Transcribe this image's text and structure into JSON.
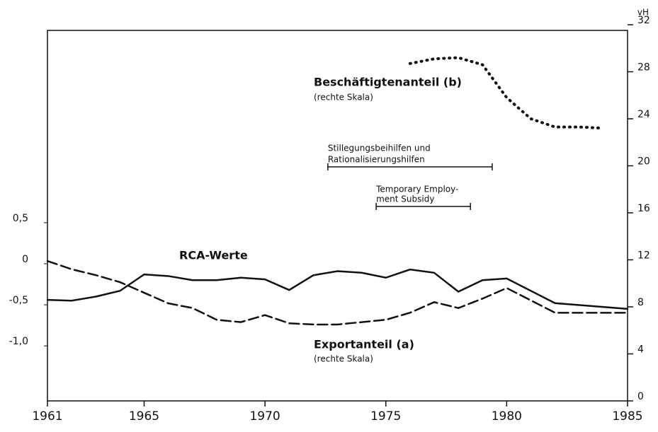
{
  "chart_data": {
    "type": "line",
    "y2label": "vH",
    "xlim": [
      1961,
      1985
    ],
    "xticks": [
      1961,
      1965,
      1970,
      1975,
      1980,
      1985
    ],
    "ylim": [
      -1.67,
      2.91
    ],
    "yticks": [
      {
        "value": 0.5,
        "label": "0,5"
      },
      0,
      {
        "value": -0.5,
        "label": "-0,5"
      },
      {
        "value": -1.0,
        "label": "-1,0"
      }
    ],
    "y2lim": [
      0,
      32
    ],
    "y2ticks": [
      0,
      4,
      8,
      12,
      16,
      20,
      24,
      28,
      32
    ],
    "series": [
      {
        "name": "RCA-Werte",
        "color": "#111",
        "style": "solid",
        "axis": "y",
        "x": [
          1961,
          1962,
          1963,
          1964,
          1965,
          1966,
          1967,
          1968,
          1969,
          1970,
          1971,
          1972,
          1973,
          1974,
          1975,
          1976,
          1977,
          1978,
          1979,
          1980,
          1982,
          1985
        ],
        "values": [
          -0.44,
          -0.45,
          -0.4,
          -0.33,
          -0.13,
          -0.15,
          -0.2,
          -0.2,
          -0.17,
          -0.19,
          -0.32,
          -0.14,
          -0.09,
          -0.11,
          -0.17,
          -0.07,
          -0.11,
          -0.34,
          -0.2,
          -0.18,
          -0.48,
          -0.55
        ]
      },
      {
        "name": "Exportanteil (a)",
        "note": "(rechte Skala)",
        "color": "#111",
        "style": "dashed",
        "axis": "y2",
        "x": [
          1961,
          1962,
          1963,
          1964,
          1965,
          1966,
          1967,
          1968,
          1969,
          1970,
          1971,
          1972,
          1973,
          1974,
          1975,
          1976,
          1977,
          1978,
          1979,
          1980,
          1982,
          1985
        ],
        "values": [
          11.9,
          11.2,
          10.7,
          10.1,
          9.2,
          8.3,
          7.9,
          6.9,
          6.7,
          7.3,
          6.6,
          6.5,
          6.5,
          6.7,
          6.9,
          7.5,
          8.4,
          7.9,
          8.7,
          9.6,
          7.5,
          7.5
        ]
      },
      {
        "name": "Beschäftigtenanteil (b)",
        "note": "(rechte Skala)",
        "color": "#111",
        "style": "dotted",
        "axis": "y2",
        "x": [
          1976,
          1977,
          1978,
          1979,
          1980,
          1981,
          1982,
          1983,
          1984
        ],
        "values": [
          28.7,
          29.1,
          29.2,
          28.6,
          25.8,
          24.0,
          23.3,
          23.3,
          23.2
        ]
      }
    ],
    "annotations": [
      {
        "text": "Stillegungsbeihilfen und",
        "text2": "Rationalisierungshilfen",
        "span": [
          1972.6,
          1979.4
        ]
      },
      {
        "text": "Temporary Employ-",
        "text2": "ment Subsidy",
        "span": [
          1974.6,
          1978.5
        ]
      }
    ]
  }
}
